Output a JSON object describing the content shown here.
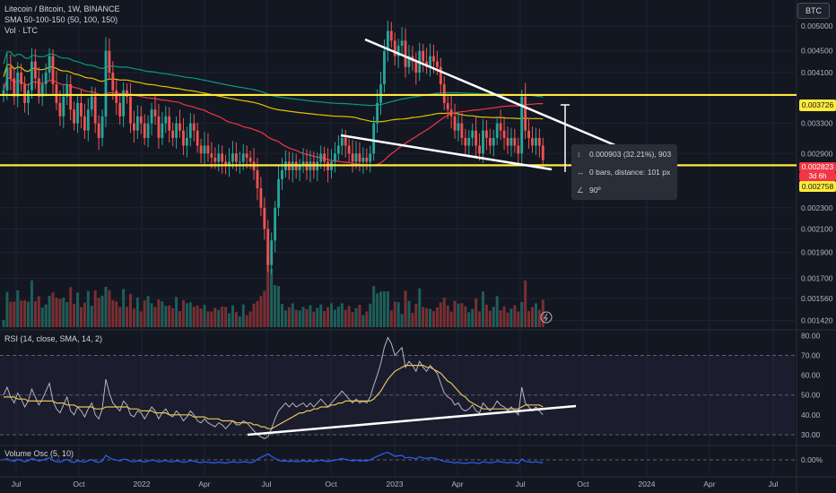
{
  "header": {
    "title": "Litecoin / Bitcoin, 1W, BINANCE",
    "sma_label": "SMA 50-100-150 (50, 100, 150)",
    "vol_label": "Vol · LTC",
    "currency_badge": "BTC"
  },
  "measure_box": {
    "change": "0.000903 (32.21%), 903",
    "bars": "0 bars, distance: 101 px",
    "angle": "90º"
  },
  "price_tags": {
    "upper_level": "0.003726",
    "current_price": "0.002823",
    "countdown": "3d 6h",
    "lower_level": "0.002758"
  },
  "colors": {
    "background": "#131722",
    "up": "#26a69a",
    "down": "#ef5350",
    "level_line": "#ffeb3b",
    "sma50": "#f23645",
    "sma100": "#e6c000",
    "sma150": "#089981",
    "rsi": "#b2b5be",
    "rsi_sma": "#e6c35a",
    "volume_osc": "#2962ff"
  },
  "chart_data": [
    {
      "type": "line",
      "name": "price_panel",
      "description_series": "weekly close LTC/BTC",
      "y_axis_ticks": [
        "0.005000",
        "0.004500",
        "0.004100",
        "0.003300",
        "0.002900",
        "0.002300",
        "0.002100",
        "0.001900",
        "0.001700",
        "0.001560",
        "0.001420"
      ],
      "y_scale": "log",
      "ylim": [
        0.00138,
        0.00555
      ],
      "x_ticks": [
        "Jul",
        "Oct",
        "2022",
        "Apr",
        "Jul",
        "Oct",
        "2023",
        "Apr",
        "Jul",
        "Oct",
        "2024",
        "Apr",
        "Jul"
      ],
      "series": [
        {
          "name": "close",
          "values": [
            0.0038,
            0.0042,
            0.004,
            0.0037,
            0.0041,
            0.0039,
            0.0036,
            0.0038,
            0.0043,
            0.004,
            0.0037,
            0.0039,
            0.0041,
            0.0044,
            0.0039,
            0.0036,
            0.0034,
            0.0037,
            0.0039,
            0.0035,
            0.0033,
            0.0036,
            0.0034,
            0.0032,
            0.0035,
            0.0037,
            0.0033,
            0.0031,
            0.0034,
            0.0045,
            0.0041,
            0.0038,
            0.0036,
            0.0034,
            0.0038,
            0.0037,
            0.0033,
            0.0032,
            0.0034,
            0.0033,
            0.0031,
            0.0033,
            0.0035,
            0.0034,
            0.0031,
            0.0033,
            0.0034,
            0.0032,
            0.0031,
            0.0033,
            0.0032,
            0.003,
            0.0031,
            0.0033,
            0.0032,
            0.003,
            0.0029,
            0.003,
            0.0029,
            0.00285,
            0.0028,
            0.0029,
            0.0028,
            0.00275,
            0.0028,
            0.0029,
            0.0028,
            0.0028,
            0.0029,
            0.00285,
            0.0028,
            0.0027,
            0.0025,
            0.0023,
            0.0021,
            0.0018,
            0.002,
            0.0023,
            0.0026,
            0.0027,
            0.0028,
            0.0027,
            0.0028,
            0.0027,
            0.00275,
            0.0028,
            0.0027,
            0.0028,
            0.0027,
            0.0028,
            0.0029,
            0.0028,
            0.0027,
            0.0028,
            0.0029,
            0.003,
            0.0031,
            0.003,
            0.0029,
            0.0028,
            0.0029,
            0.0028,
            0.00285,
            0.0028,
            0.0029,
            0.0033,
            0.0036,
            0.0039,
            0.0045,
            0.0049,
            0.0047,
            0.0044,
            0.0046,
            0.0047,
            0.0042,
            0.0044,
            0.0043,
            0.0041,
            0.0045,
            0.0043,
            0.0042,
            0.0044,
            0.0043,
            0.0042,
            0.0039,
            0.0036,
            0.0035,
            0.0034,
            0.0032,
            0.0033,
            0.0031,
            0.003,
            0.0031,
            0.0032,
            0.003,
            0.0029,
            0.0032,
            0.0031,
            0.003,
            0.0031,
            0.0033,
            0.0032,
            0.0031,
            0.003,
            0.0031,
            0.003,
            0.0029,
            0.0037,
            0.0032,
            0.0031,
            0.003,
            0.0031,
            0.003,
            0.00282
          ]
        }
      ],
      "levels": [
        0.003726,
        0.002758
      ]
    },
    {
      "type": "line",
      "name": "rsi_panel",
      "legend": "RSI (14, close, SMA, 14, 2)",
      "y_axis_ticks": [
        "80.00",
        "70.00",
        "60.00",
        "50.00",
        "40.00",
        "30.00"
      ],
      "ylim": [
        25,
        82
      ],
      "band": [
        30,
        70
      ],
      "series": [
        {
          "name": "RSI",
          "values": [
            50,
            54,
            49,
            46,
            51,
            48,
            44,
            47,
            53,
            49,
            45,
            48,
            52,
            56,
            47,
            43,
            41,
            45,
            49,
            42,
            40,
            44,
            42,
            39,
            43,
            46,
            40,
            38,
            43,
            58,
            51,
            46,
            44,
            42,
            47,
            45,
            40,
            39,
            42,
            41,
            38,
            41,
            44,
            42,
            38,
            41,
            43,
            40,
            39,
            42,
            40,
            37,
            39,
            42,
            40,
            37,
            36,
            38,
            36,
            35,
            34,
            36,
            35,
            33,
            35,
            37,
            35,
            35,
            37,
            36,
            34,
            32,
            30,
            29,
            28,
            29,
            33,
            38,
            42,
            44,
            46,
            44,
            46,
            44,
            45,
            46,
            44,
            46,
            44,
            46,
            48,
            46,
            44,
            46,
            48,
            50,
            52,
            50,
            48,
            46,
            48,
            46,
            47,
            46,
            49,
            55,
            60,
            66,
            74,
            79,
            76,
            70,
            72,
            74,
            64,
            67,
            65,
            62,
            67,
            64,
            62,
            65,
            63,
            61,
            56,
            51,
            49,
            48,
            45,
            46,
            43,
            42,
            43,
            45,
            42,
            41,
            46,
            44,
            42,
            44,
            47,
            45,
            44,
            42,
            44,
            42,
            40,
            54,
            46,
            44,
            42,
            44,
            42,
            40
          ]
        },
        {
          "name": "RSI-based MA",
          "values": [
            49,
            49,
            49,
            49,
            48,
            48,
            48,
            47,
            47,
            47,
            47,
            47,
            47,
            47,
            47,
            46,
            46,
            46,
            45,
            45,
            45,
            44,
            44,
            44,
            44,
            44,
            43,
            43,
            43,
            44,
            44,
            44,
            44,
            44,
            44,
            44,
            43,
            43,
            43,
            42,
            42,
            42,
            42,
            41,
            41,
            41,
            41,
            40,
            40,
            40,
            40,
            40,
            40,
            40,
            39,
            39,
            39,
            39,
            38,
            38,
            38,
            38,
            37,
            37,
            37,
            37,
            36,
            36,
            36,
            36,
            36,
            35,
            35,
            34,
            34,
            33,
            33,
            34,
            35,
            36,
            37,
            38,
            39,
            40,
            41,
            41,
            42,
            42,
            43,
            43,
            44,
            44,
            44,
            45,
            45,
            46,
            46,
            47,
            47,
            47,
            47,
            47,
            47,
            47,
            47,
            48,
            50,
            52,
            55,
            58,
            60,
            62,
            63,
            64,
            65,
            65,
            65,
            65,
            65,
            65,
            64,
            64,
            63,
            62,
            61,
            59,
            57,
            56,
            54,
            52,
            50,
            49,
            47,
            46,
            45,
            44,
            43,
            43,
            43,
            43,
            43,
            43,
            43,
            43,
            43,
            43,
            43,
            44,
            45,
            45,
            45,
            45,
            45,
            44
          ]
        }
      ]
    },
    {
      "type": "line",
      "name": "volume_osc_panel",
      "legend": "Volume Osc (5, 10)",
      "y_axis_ticks": [
        "0.00%"
      ],
      "series": [
        {
          "name": "Volume Osc",
          "values": [
            0,
            5,
            -3,
            -6,
            2,
            -2,
            -8,
            -4,
            6,
            1,
            -5,
            -1,
            4,
            9,
            -2,
            -7,
            -9,
            -3,
            2,
            -8,
            -10,
            -4,
            -6,
            -9,
            -3,
            1,
            -7,
            -10,
            -5,
            18,
            9,
            2,
            -1,
            -5,
            3,
            1,
            -6,
            -8,
            -4,
            -5,
            -9,
            -5,
            -1,
            -3,
            -9,
            -5,
            -2,
            -7,
            -8,
            -4,
            -6,
            -10,
            -8,
            -3,
            -5,
            -9,
            -11,
            -8,
            -10,
            -11,
            -12,
            -9,
            -11,
            -13,
            -10,
            -7,
            -10,
            -10,
            -7,
            -9,
            -11,
            -8,
            2,
            10,
            16,
            24,
            14,
            6,
            -2,
            -5,
            -4,
            -7,
            -4,
            -7,
            -6,
            -3,
            -7,
            -4,
            -7,
            -4,
            -1,
            -4,
            -7,
            -4,
            -1,
            2,
            5,
            2,
            -1,
            -4,
            -1,
            -4,
            -3,
            -4,
            0,
            8,
            14,
            20,
            26,
            30,
            22,
            14,
            16,
            18,
            8,
            10,
            8,
            4,
            12,
            8,
            5,
            9,
            7,
            4,
            -1,
            -6,
            -8,
            -9,
            -12,
            -10,
            -13,
            -14,
            -12,
            -10,
            -13,
            -14,
            -8,
            -10,
            -12,
            -10,
            -6,
            -8,
            -10,
            -12,
            -10,
            -12,
            -14,
            4,
            -6,
            -8,
            -10,
            -8,
            -10,
            -12
          ]
        }
      ]
    }
  ]
}
